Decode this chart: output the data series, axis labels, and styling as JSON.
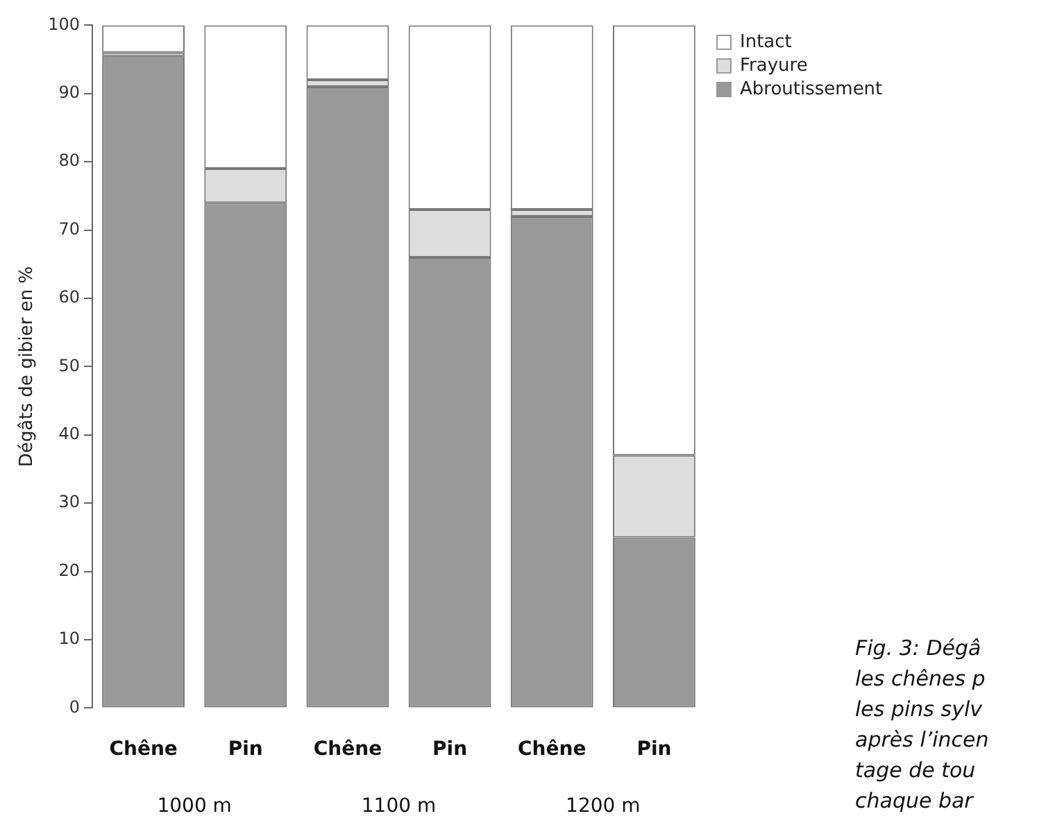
{
  "chart_data": {
    "type": "bar",
    "ylabel": "Dégâts de gibier en %",
    "categories": [
      "Chêne",
      "Pin",
      "Chêne",
      "Pin",
      "Chêne",
      "Pin"
    ],
    "stacked": true,
    "series": [
      {
        "name": "Abroutissement",
        "color": "#999999",
        "values": [
          95.5,
          74,
          91,
          66,
          72,
          25
        ]
      },
      {
        "name": "Frayure",
        "color": "#dddddd",
        "values": [
          0.5,
          5,
          1,
          7,
          1,
          12
        ]
      },
      {
        "name": "Intact",
        "color": "#ffffff",
        "values": [
          4,
          21,
          8,
          27,
          27,
          63
        ]
      }
    ],
    "ylim": [
      0,
      100
    ],
    "yticks": [
      0,
      10,
      20,
      30,
      40,
      50,
      60,
      70,
      80,
      90,
      100
    ],
    "grid": false,
    "legend": "top right",
    "annotations": [
      "1000 m",
      "1100 m",
      "1200 m",
      "Fig. 3: Dégâ\nles chênes p\nles pins sylv\naprès l’incen\ntage de tou\nchaque bar"
    ]
  }
}
